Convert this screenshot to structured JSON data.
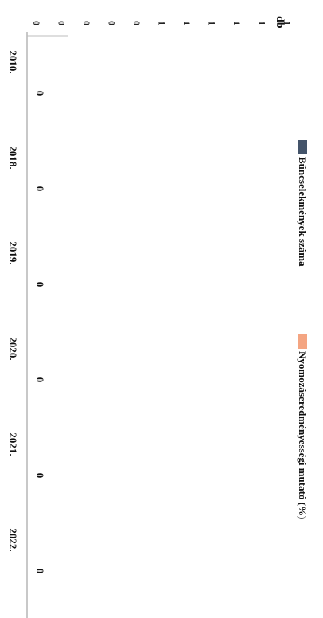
{
  "chart_data": {
    "type": "bar",
    "orientation": "rotated-90-clockwise",
    "ylabel": "db",
    "categories": [
      "2010.",
      "2018.",
      "2019.",
      "2020.",
      "2021.",
      "2022."
    ],
    "series": [
      {
        "name": "Bűncselekmények száma",
        "values": [
          0,
          0,
          0,
          0,
          0,
          0
        ],
        "color": "#44546a"
      },
      {
        "name": "Nyomozáseredményességi mutató (%)",
        "values": [
          null,
          null,
          null,
          null,
          null,
          null
        ],
        "color": "#f4a582"
      }
    ],
    "data_labels": [
      "0",
      "0",
      "0",
      "0",
      "0",
      "0"
    ],
    "y_ticks": [
      "0",
      "0",
      "0",
      "0",
      "0",
      "1",
      "1",
      "1",
      "1",
      "1",
      "1"
    ],
    "ylim": [
      0,
      1
    ],
    "grid": false,
    "legend_position": "right"
  }
}
